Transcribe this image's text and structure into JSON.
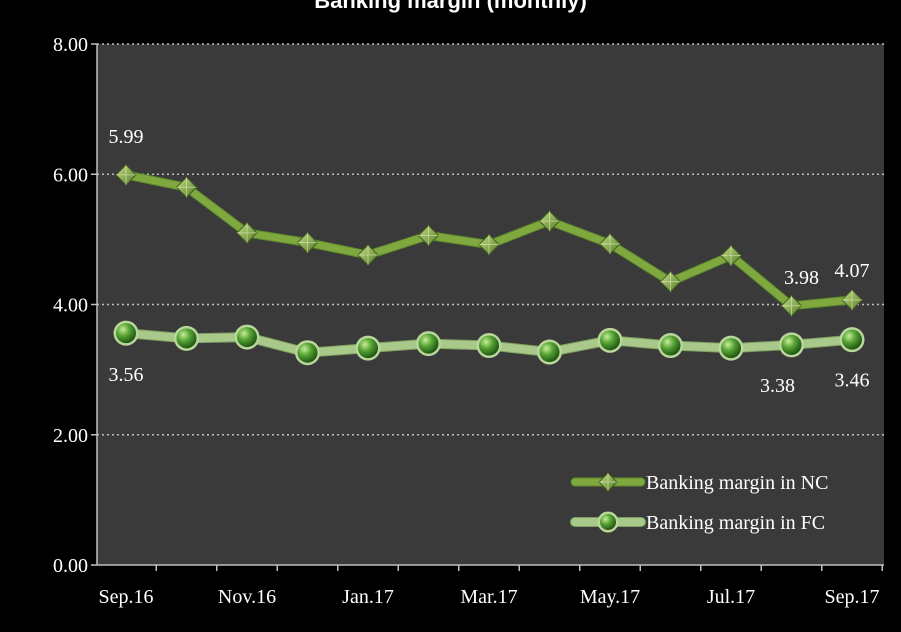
{
  "chart_data": {
    "type": "line",
    "title": "Banking margin (monthly)",
    "x": [
      "Sep.16",
      "Oct.16",
      "Nov.16",
      "Dec.16",
      "Jan.17",
      "Feb.17",
      "Mar.17",
      "Apr.17",
      "May.17",
      "Jun.17",
      "Jul.17",
      "Aug.17",
      "Sep.17"
    ],
    "tick_labels": [
      "Sep.16",
      "Nov.16",
      "Jan.17",
      "Mar.17",
      "May.17",
      "Jul.17",
      "Sep.17"
    ],
    "xlabel": "",
    "ylabel": "",
    "ylim": [
      0,
      8
    ],
    "y_ticks": [
      "0.00",
      "2.00",
      "4.00",
      "6.00",
      "8.00"
    ],
    "grid": true,
    "legend_position": "bottom-right",
    "series": [
      {
        "name": "Banking margin in NC",
        "marker": "diamond",
        "color": "#7fa83f",
        "values": [
          5.99,
          5.8,
          5.1,
          4.95,
          4.76,
          5.06,
          4.92,
          5.28,
          4.93,
          4.35,
          4.75,
          3.98,
          4.07
        ]
      },
      {
        "name": "Banking margin in FC",
        "marker": "circle",
        "color": "#a9c98a",
        "values": [
          3.56,
          3.48,
          3.5,
          3.26,
          3.33,
          3.4,
          3.37,
          3.27,
          3.45,
          3.37,
          3.33,
          3.38,
          3.46
        ]
      }
    ],
    "data_labels": [
      {
        "series": 0,
        "index": 0,
        "text": "5.99"
      },
      {
        "series": 0,
        "index": 11,
        "text": "3.98"
      },
      {
        "series": 0,
        "index": 12,
        "text": "4.07"
      },
      {
        "series": 1,
        "index": 0,
        "text": "3.56"
      },
      {
        "series": 1,
        "index": 11,
        "text": "3.38"
      },
      {
        "series": 1,
        "index": 12,
        "text": "3.46"
      }
    ],
    "colors": {
      "plot_background": "#3a3a3a",
      "page_background": "#000000",
      "grid": "#bfbfbf",
      "axis": "#bfbfbf",
      "text": "#ffffff"
    }
  }
}
